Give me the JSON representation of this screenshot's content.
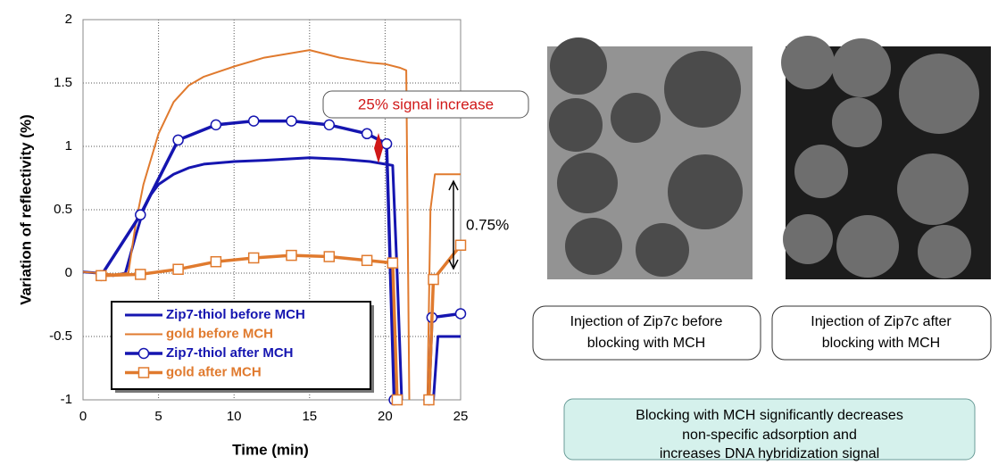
{
  "chart_data": {
    "type": "line",
    "xlabel": "Time (min)",
    "ylabel": "Variation of reflectivity (%)",
    "xlim": [
      0,
      25
    ],
    "ylim": [
      -1,
      2
    ],
    "xticks": [
      0,
      5,
      10,
      15,
      20,
      25
    ],
    "yticks": [
      -1,
      -0.5,
      0,
      0.5,
      1,
      1.5,
      2
    ],
    "grid": true,
    "legend": "lower left",
    "series": [
      {
        "name": "Zip7-thiol before MCH",
        "color": "#1515b0",
        "width": 3,
        "marker": "none",
        "x": [
          0,
          1,
          2,
          2.8,
          3.5,
          4,
          4.5,
          5,
          6,
          7,
          8,
          10,
          12,
          15,
          17,
          19,
          20,
          20.5,
          20.8,
          21.1,
          22,
          23.2,
          23.5,
          25
        ],
        "values": [
          0.01,
          0,
          -0.02,
          0,
          0.3,
          0.5,
          0.62,
          0.7,
          0.78,
          0.83,
          0.86,
          0.88,
          0.89,
          0.91,
          0.9,
          0.88,
          0.86,
          0.85,
          0,
          -1,
          null,
          -1,
          -0.5,
          -0.5
        ]
      },
      {
        "name": "gold before MCH",
        "color": "#e07a2e",
        "width": 2,
        "marker": "none",
        "x": [
          0,
          1,
          2,
          3,
          3.5,
          4,
          5,
          6,
          7,
          8,
          10,
          12,
          15,
          17,
          19,
          20,
          21,
          21.4,
          21.6,
          22,
          22.8,
          23,
          23.3,
          25
        ],
        "values": [
          0.01,
          0,
          -0.01,
          0,
          0.4,
          0.7,
          1.1,
          1.35,
          1.48,
          1.55,
          1.63,
          1.7,
          1.76,
          1.7,
          1.66,
          1.65,
          1.62,
          1.6,
          -1,
          null,
          -1,
          0.5,
          0.78,
          0.78
        ]
      },
      {
        "name": "Zip7-thiol after MCH",
        "color": "#1515b0",
        "width": 3.5,
        "marker": "circle",
        "x": [
          1.2,
          3.8,
          6.3,
          8.8,
          11.3,
          13.8,
          16.3,
          18.8,
          20.1,
          20.6,
          22,
          22.9,
          23.1,
          25
        ],
        "values": [
          -0.02,
          0.46,
          1.05,
          1.17,
          1.2,
          1.2,
          1.17,
          1.1,
          1.02,
          -1,
          null,
          -1,
          -0.35,
          -0.32
        ]
      },
      {
        "name": "gold after MCH",
        "color": "#e07a2e",
        "width": 3.5,
        "marker": "square",
        "x": [
          1.2,
          3.8,
          6.3,
          8.8,
          11.3,
          13.8,
          16.3,
          18.8,
          20.5,
          20.8,
          22,
          22.9,
          23.2,
          25
        ],
        "values": [
          -0.02,
          -0.01,
          0.03,
          0.09,
          0.12,
          0.14,
          0.13,
          0.1,
          0.08,
          -1,
          null,
          -1,
          -0.05,
          0.22
        ]
      }
    ],
    "annotations": [
      "25% signal increase",
      "0.75%"
    ]
  },
  "captions": [
    [
      "Injection of Zip7c before",
      "blocking with MCH"
    ],
    [
      "Injection of Zip7c after",
      "blocking with MCH"
    ]
  ],
  "note": [
    "Blocking with MCH significantly decreases",
    "non-specific adsorption and",
    "increases DNA hybridization signal"
  ]
}
